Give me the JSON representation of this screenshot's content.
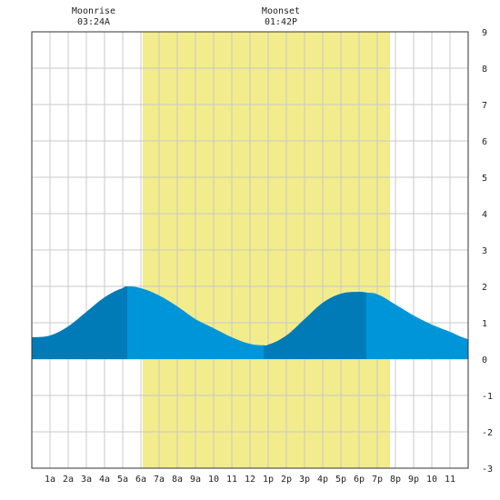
{
  "chart_data": {
    "type": "area",
    "title": "",
    "xlabel": "",
    "ylabel": "",
    "x_tick_labels": [
      "1a",
      "2a",
      "3a",
      "4a",
      "5a",
      "6a",
      "7a",
      "8a",
      "9a",
      "10",
      "11",
      "12",
      "1p",
      "2p",
      "3p",
      "4p",
      "5p",
      "6p",
      "7p",
      "8p",
      "9p",
      "10",
      "11"
    ],
    "y_tick_labels": [
      "9",
      "8",
      "7",
      "6",
      "5",
      "4",
      "3",
      "2",
      "1",
      "0",
      "-1",
      "-2",
      "-3"
    ],
    "xlim_hours": [
      0,
      24
    ],
    "ylim": [
      -3,
      9
    ],
    "grid": true,
    "moon_events": [
      {
        "label": "Moonrise",
        "time": "03:24A",
        "hour": 3.4
      },
      {
        "label": "Moonset",
        "time": "01:42P",
        "hour": 13.7
      }
    ],
    "daylight_hours": [
      6.1,
      19.7
    ],
    "tide_series": {
      "hours": [
        0,
        1,
        2,
        3,
        4,
        5,
        5.25,
        6,
        7,
        8,
        9,
        10,
        11,
        12,
        12.75,
        13,
        14,
        15,
        16,
        17,
        18,
        18.4,
        19,
        20,
        21,
        22,
        23,
        24
      ],
      "heights": [
        0.6,
        0.65,
        0.9,
        1.3,
        1.7,
        1.95,
        2.0,
        1.95,
        1.75,
        1.45,
        1.1,
        0.85,
        0.6,
        0.42,
        0.38,
        0.4,
        0.65,
        1.1,
        1.55,
        1.8,
        1.85,
        1.83,
        1.78,
        1.5,
        1.2,
        0.95,
        0.75,
        0.55
      ],
      "extremes_hours": [
        5.25,
        12.75,
        18.4
      ]
    },
    "colors": {
      "daylight": "#f2ec8c",
      "tide_light": "#0095d9",
      "tide_dark": "#007bb8",
      "grid": "#c8c8c8",
      "background": "#ffffff"
    }
  }
}
